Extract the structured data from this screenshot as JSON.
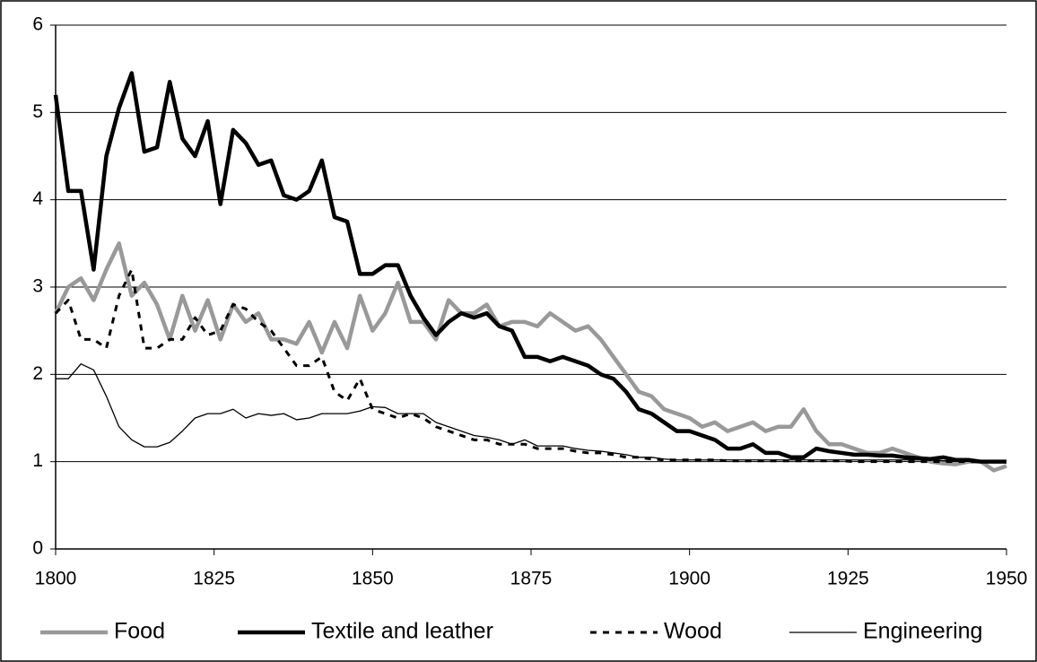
{
  "chart_data": {
    "type": "line",
    "x": [
      1800,
      1802,
      1804,
      1806,
      1808,
      1810,
      1812,
      1814,
      1816,
      1818,
      1820,
      1822,
      1824,
      1826,
      1828,
      1830,
      1832,
      1834,
      1836,
      1838,
      1840,
      1842,
      1844,
      1846,
      1848,
      1850,
      1852,
      1854,
      1856,
      1858,
      1860,
      1862,
      1864,
      1866,
      1868,
      1870,
      1872,
      1874,
      1876,
      1878,
      1880,
      1882,
      1884,
      1886,
      1888,
      1890,
      1892,
      1894,
      1896,
      1898,
      1900,
      1902,
      1904,
      1906,
      1908,
      1910,
      1912,
      1914,
      1916,
      1918,
      1920,
      1922,
      1924,
      1926,
      1928,
      1930,
      1932,
      1934,
      1936,
      1938,
      1940,
      1942,
      1944,
      1946,
      1948,
      1950
    ],
    "series": [
      {
        "name": "Food",
        "color": "#999999",
        "width": 4.5,
        "dashed": false,
        "values": [
          2.7,
          3.0,
          3.1,
          2.85,
          3.2,
          3.5,
          2.9,
          3.05,
          2.8,
          2.4,
          2.9,
          2.5,
          2.85,
          2.4,
          2.8,
          2.6,
          2.7,
          2.4,
          2.4,
          2.35,
          2.6,
          2.25,
          2.6,
          2.3,
          2.9,
          2.5,
          2.7,
          3.05,
          2.6,
          2.6,
          2.4,
          2.85,
          2.7,
          2.7,
          2.8,
          2.55,
          2.6,
          2.6,
          2.55,
          2.7,
          2.6,
          2.5,
          2.55,
          2.4,
          2.2,
          2.0,
          1.8,
          1.75,
          1.6,
          1.55,
          1.5,
          1.4,
          1.45,
          1.35,
          1.4,
          1.45,
          1.35,
          1.4,
          1.4,
          1.6,
          1.35,
          1.2,
          1.2,
          1.15,
          1.1,
          1.1,
          1.15,
          1.1,
          1.05,
          1.0,
          0.98,
          0.97,
          1.0,
          1.0,
          0.9,
          0.95
        ]
      },
      {
        "name": "Textile and leather",
        "color": "#000000",
        "width": 4.5,
        "dashed": false,
        "values": [
          5.2,
          4.1,
          4.1,
          3.2,
          4.5,
          5.05,
          5.45,
          4.55,
          4.6,
          5.35,
          4.7,
          4.5,
          4.9,
          3.95,
          4.8,
          4.65,
          4.4,
          4.45,
          4.05,
          4.0,
          4.1,
          4.45,
          3.8,
          3.75,
          3.15,
          3.15,
          3.25,
          3.25,
          2.9,
          2.65,
          2.45,
          2.6,
          2.7,
          2.65,
          2.7,
          2.55,
          2.5,
          2.2,
          2.2,
          2.15,
          2.2,
          2.15,
          2.1,
          2.0,
          1.95,
          1.8,
          1.6,
          1.55,
          1.45,
          1.35,
          1.35,
          1.3,
          1.25,
          1.15,
          1.15,
          1.2,
          1.1,
          1.1,
          1.05,
          1.05,
          1.15,
          1.12,
          1.1,
          1.08,
          1.08,
          1.07,
          1.07,
          1.05,
          1.04,
          1.03,
          1.05,
          1.02,
          1.02,
          1.0,
          1.0,
          1.0
        ]
      },
      {
        "name": "Wood",
        "color": "#000000",
        "width": 3,
        "dashed": true,
        "values": [
          2.7,
          2.85,
          2.4,
          2.4,
          2.3,
          2.9,
          3.2,
          2.3,
          2.3,
          2.4,
          2.4,
          2.65,
          2.45,
          2.5,
          2.8,
          2.75,
          2.6,
          2.5,
          2.3,
          2.1,
          2.1,
          2.2,
          1.8,
          1.7,
          1.95,
          1.6,
          1.55,
          1.5,
          1.55,
          1.5,
          1.4,
          1.35,
          1.3,
          1.25,
          1.25,
          1.2,
          1.2,
          1.2,
          1.15,
          1.15,
          1.15,
          1.12,
          1.1,
          1.1,
          1.08,
          1.05,
          1.05,
          1.03,
          1.02,
          1.02,
          1.02,
          1.02,
          1.02,
          1.01,
          1.01,
          1.01,
          1.01,
          1.01,
          1.01,
          1.01,
          1.01,
          1.01,
          1.01,
          1.0,
          1.0,
          1.0,
          1.0,
          1.0,
          1.0,
          1.0,
          1.0,
          1.0,
          1.0,
          1.0,
          1.0,
          1.0
        ]
      },
      {
        "name": "Engineering",
        "color": "#000000",
        "width": 1.3,
        "dashed": false,
        "values": [
          1.95,
          1.95,
          2.12,
          2.05,
          1.75,
          1.4,
          1.25,
          1.17,
          1.17,
          1.22,
          1.35,
          1.5,
          1.55,
          1.55,
          1.6,
          1.5,
          1.55,
          1.53,
          1.55,
          1.48,
          1.5,
          1.55,
          1.55,
          1.55,
          1.58,
          1.63,
          1.62,
          1.55,
          1.55,
          1.55,
          1.45,
          1.4,
          1.35,
          1.3,
          1.28,
          1.25,
          1.2,
          1.25,
          1.18,
          1.18,
          1.18,
          1.15,
          1.13,
          1.12,
          1.1,
          1.08,
          1.05,
          1.05,
          1.03,
          1.02,
          1.02,
          1.02,
          1.02,
          1.02,
          1.02,
          1.02,
          1.02,
          1.02,
          1.02,
          1.02,
          1.02,
          1.02,
          1.02,
          1.02,
          1.02,
          1.02,
          1.02,
          1.02,
          1.02,
          1.02,
          1.01,
          1.01,
          1.01,
          1.01,
          1.01,
          1.01
        ]
      }
    ],
    "xlim": [
      1800,
      1950
    ],
    "xticks": [
      1800,
      1825,
      1850,
      1875,
      1900,
      1925,
      1950
    ],
    "ylim": [
      0,
      6
    ],
    "yticks": [
      0,
      1,
      2,
      3,
      4,
      5,
      6
    ],
    "grid": true,
    "legend": "bottom"
  }
}
